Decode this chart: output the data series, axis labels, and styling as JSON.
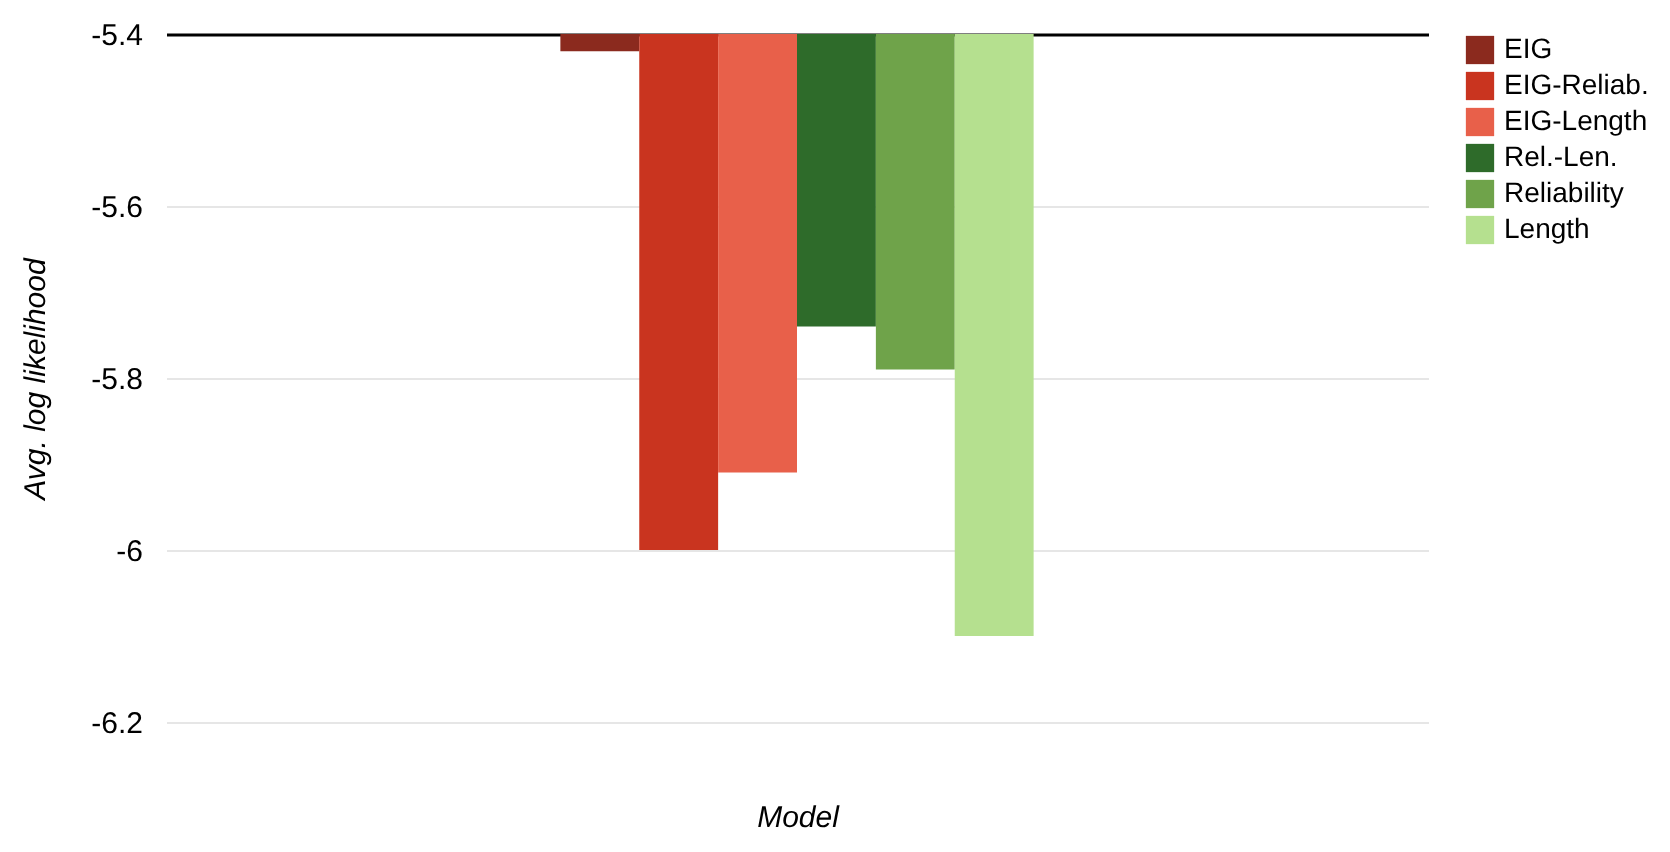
{
  "chart_data": {
    "type": "bar",
    "xlabel": "Model",
    "ylabel": "Avg. log likelihood",
    "categories": [
      null
    ],
    "series": [
      {
        "name": "EIG",
        "color": "#8b2a1e",
        "values": [
          -5.42
        ]
      },
      {
        "name": "EIG-Reliab.",
        "color": "#c9341f",
        "values": [
          -6.0
        ]
      },
      {
        "name": "EIG-Length",
        "color": "#e8604a",
        "values": [
          -5.91
        ]
      },
      {
        "name": "Rel.-Len.",
        "color": "#2e6b2a",
        "values": [
          -5.74
        ]
      },
      {
        "name": "Reliability",
        "color": "#6fa34a",
        "values": [
          -5.79
        ]
      },
      {
        "name": "Length",
        "color": "#b5e08f",
        "values": [
          -6.1
        ]
      }
    ],
    "ylim": [
      -6.2,
      -5.4
    ],
    "yticks": [
      -5.4,
      -5.6,
      -5.8,
      -6,
      -6.2
    ],
    "grid": "y",
    "legend": "top right",
    "tick_labels": "y"
  }
}
